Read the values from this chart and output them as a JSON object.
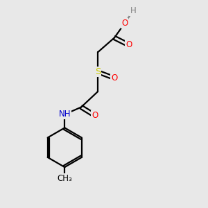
{
  "bg_color": "#e8e8e8",
  "atom_colors": {
    "O": "#ff0000",
    "N": "#0000cc",
    "S": "#cccc00",
    "H": "#808080",
    "C": "#000000"
  },
  "bond_color": "#000000",
  "bond_width": 1.6,
  "figsize": [
    3.0,
    3.0
  ],
  "dpi": 100,
  "xlim": [
    0,
    10
  ],
  "ylim": [
    0,
    10
  ],
  "font_size": 8.5,
  "font_size_small": 7.5
}
